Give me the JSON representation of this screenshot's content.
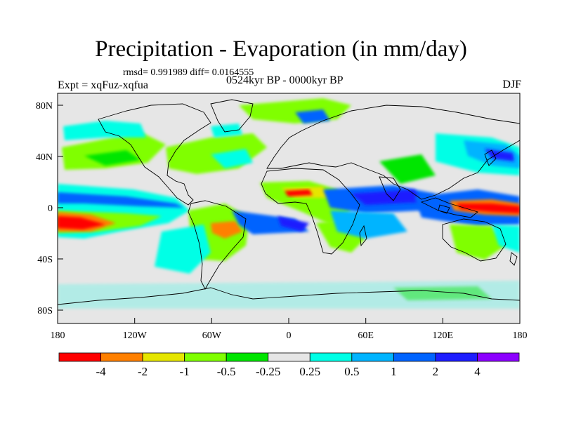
{
  "header": {
    "title": "Precipitation - Evaporation (in mm/day)",
    "stats": "rmsd= 0.991989 diff= 0.0164555",
    "left_string": "Expt = xqFuz-xqfua",
    "center_string": "0524kyr BP - 0000kyr BP",
    "right_string": "DJF"
  },
  "axes": {
    "lat_labels": [
      "80N",
      "40N",
      "0",
      "40S",
      "80S"
    ],
    "lon_labels": [
      "180",
      "120W",
      "60W",
      "0",
      "60E",
      "120E",
      "180"
    ]
  },
  "colorbar": {
    "colors": [
      "#ff0000",
      "#ff8000",
      "#e6e600",
      "#80ff00",
      "#00e600",
      "#e6e6e6",
      "#00ffe6",
      "#00b4ff",
      "#0064ff",
      "#1e1eff",
      "#8c00ff"
    ],
    "labels": [
      "-4",
      "-2",
      "-1",
      "-0.5",
      "-0.25",
      "0.25",
      "0.5",
      "1",
      "2",
      "4"
    ]
  },
  "colors": {
    "background": "#e6e6e6",
    "coast": "#000000"
  }
}
